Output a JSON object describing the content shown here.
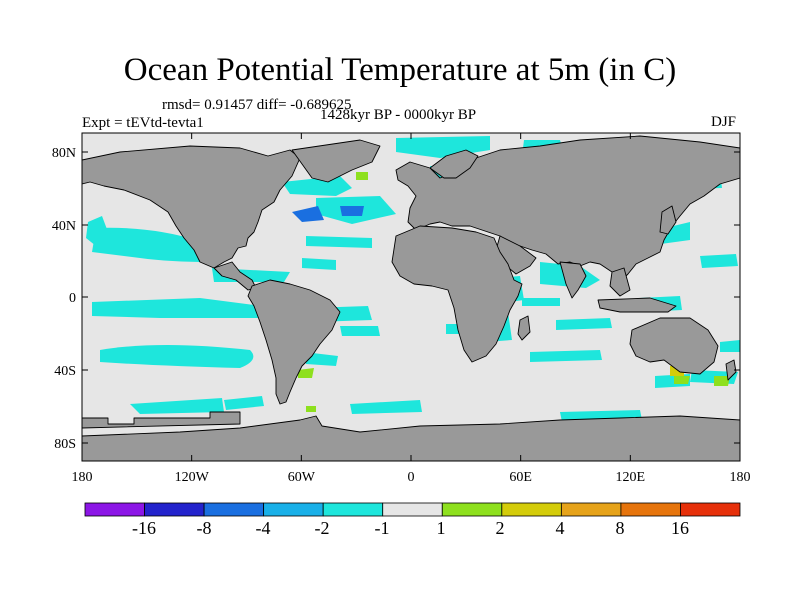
{
  "title": "Ocean Potential Temperature at 5m (in C)",
  "stats": "rmsd= 0.91457 diff= -0.689625",
  "experiment": "Expt = tEVtd-tevta1",
  "period": "1428kyr BP - 0000kyr BP",
  "season": "DJF",
  "lat_ticks": [
    "80N",
    "40N",
    "0",
    "40S",
    "80S"
  ],
  "lon_ticks": [
    "180",
    "120W",
    "60W",
    "0",
    "60E",
    "120E",
    "180"
  ],
  "colorbar": {
    "colors": [
      "#8c16e6",
      "#2323cc",
      "#1a6fe0",
      "#19b0e8",
      "#1ee6dc",
      "#e6e6e6",
      "#8ee01e",
      "#d4cc0a",
      "#e6a31a",
      "#e6740c",
      "#e6300a"
    ],
    "labels": [
      "-16",
      "-8",
      "-4",
      "-2",
      "-1",
      "1",
      "2",
      "4",
      "8",
      "16"
    ]
  },
  "colors": {
    "ocean_neutral": "#e6e6e6",
    "land": "#999999",
    "cool": "#1ee6dc",
    "cold": "#1a6fe0",
    "warm": "#8ee01e",
    "warmer": "#d4cc0a"
  }
}
